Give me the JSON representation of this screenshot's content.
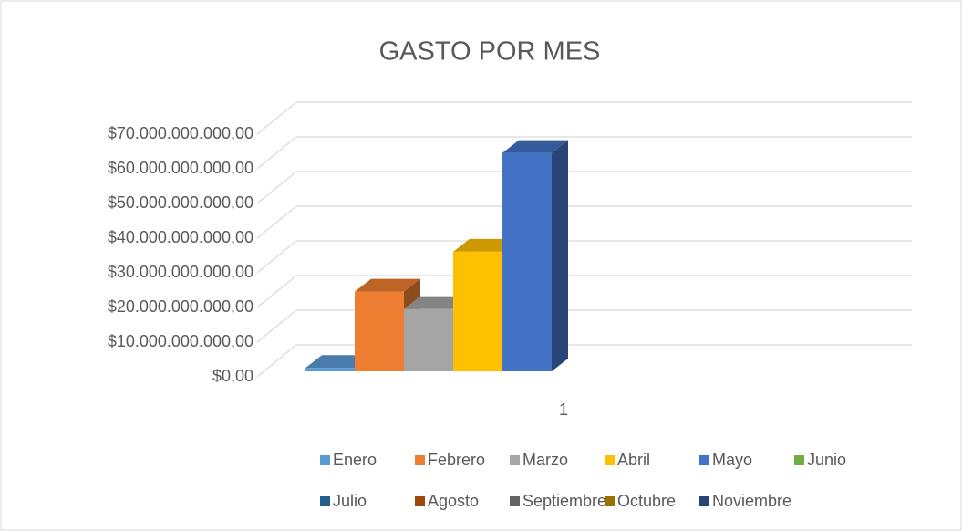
{
  "chart_data": {
    "type": "bar3d",
    "title": "GASTO POR MES",
    "categories": [
      "1"
    ],
    "series": [
      {
        "name": "Enero",
        "color": "#5b9bd5",
        "values": [
          1000000000
        ]
      },
      {
        "name": "Febrero",
        "color": "#ed7d31",
        "values": [
          23000000000
        ]
      },
      {
        "name": "Marzo",
        "color": "#a5a5a5",
        "values": [
          18000000000
        ]
      },
      {
        "name": "Abril",
        "color": "#ffc000",
        "values": [
          34500000000
        ]
      },
      {
        "name": "Mayo",
        "color": "#4472c4",
        "values": [
          63000000000
        ]
      },
      {
        "name": "Junio",
        "color": "#70ad47",
        "values": [
          null
        ]
      },
      {
        "name": "Julio",
        "color": "#255e91",
        "values": [
          null
        ]
      },
      {
        "name": "Agosto",
        "color": "#9e480e",
        "values": [
          null
        ]
      },
      {
        "name": "Septiembre",
        "color": "#636363",
        "values": [
          null
        ]
      },
      {
        "name": "Octubre",
        "color": "#997300",
        "values": [
          null
        ]
      },
      {
        "name": "Noviembre",
        "color": "#264478",
        "values": [
          null
        ]
      }
    ],
    "ylim": [
      0,
      70000000000
    ],
    "yticks": [
      {
        "value": 0,
        "label": "$0,00"
      },
      {
        "value": 10000000000,
        "label": "$10.000.000.000,00"
      },
      {
        "value": 20000000000,
        "label": "$20.000.000.000,00"
      },
      {
        "value": 30000000000,
        "label": "$30.000.000.000,00"
      },
      {
        "value": 40000000000,
        "label": "$40.000.000.000,00"
      },
      {
        "value": 50000000000,
        "label": "$50.000.000.000,00"
      },
      {
        "value": 60000000000,
        "label": "$60.000.000.000,00"
      },
      {
        "value": 70000000000,
        "label": "$70.000.000.000,00"
      }
    ],
    "grid": true,
    "legend": "bottom"
  }
}
